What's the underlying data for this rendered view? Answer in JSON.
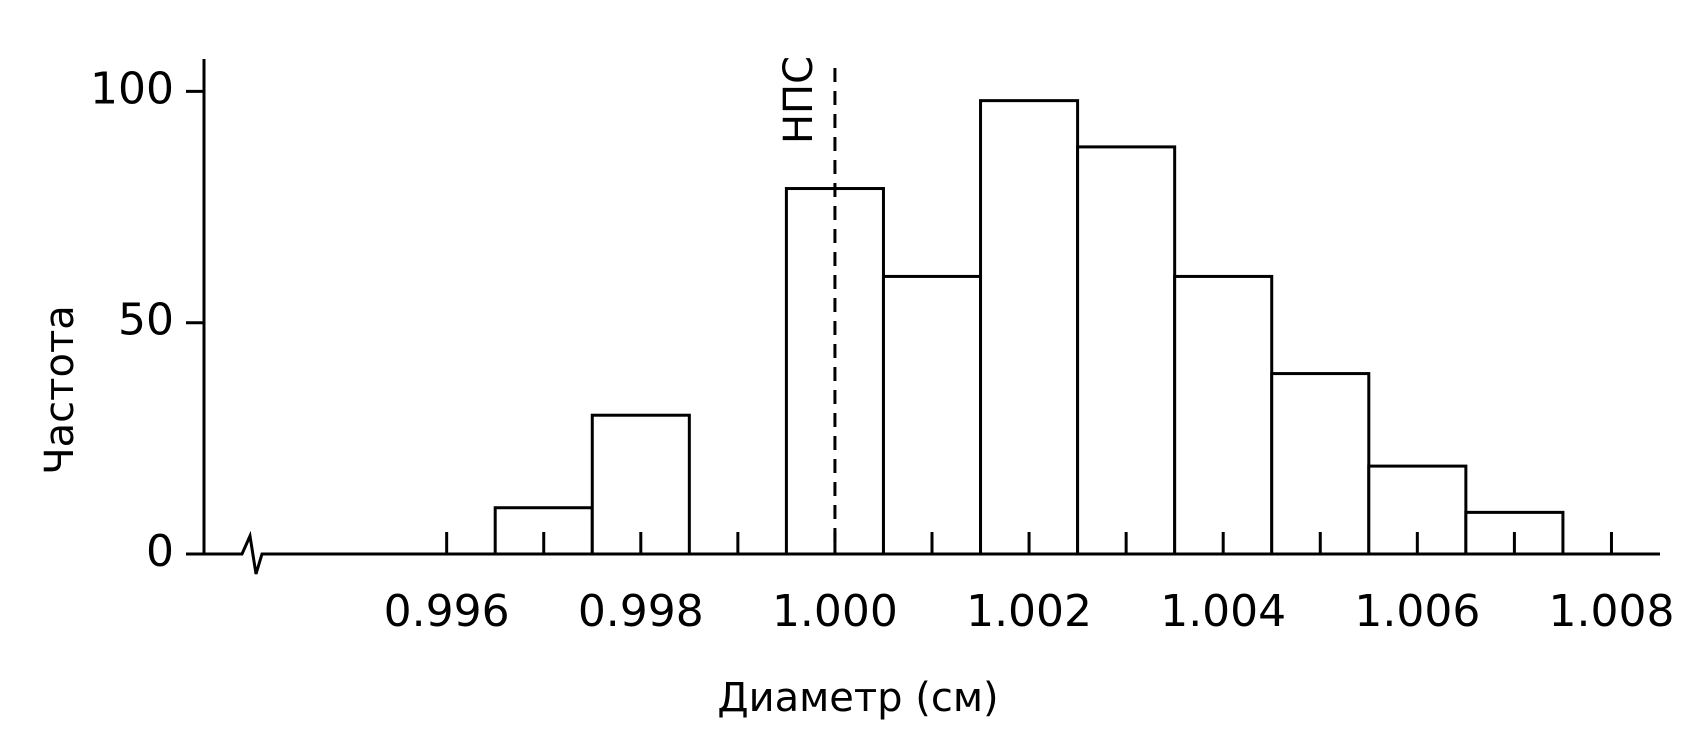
{
  "chart_data": {
    "type": "histogram",
    "x_label": "Диаметр (см)",
    "y_label": "Частота",
    "bins": [
      0.9965,
      0.9975,
      0.9985,
      0.9995,
      1.0005,
      1.0015,
      1.0025,
      1.0035,
      1.0045,
      1.0055,
      1.0065,
      1.0075
    ],
    "counts": [
      10,
      30,
      0,
      79,
      60,
      98,
      88,
      60,
      39,
      19,
      9
    ],
    "color": "#ffffff",
    "edge_color": "#000000",
    "xlim": [
      0.9935,
      1.0085
    ],
    "xticks": [
      0.996,
      0.998,
      {
        "value": 1.0,
        "label": "1.000"
      },
      1.002,
      1.004,
      1.006,
      1.008
    ],
    "x_minor_ticks": [
      0.997,
      0.999,
      1.001,
      1.003,
      1.005,
      1.007
    ],
    "ylim": [
      0,
      107
    ],
    "yticks": [
      0,
      50,
      100
    ],
    "grid": false,
    "annotations": [
      {
        "text": "НПС",
        "x": 1.0
      }
    ]
  }
}
